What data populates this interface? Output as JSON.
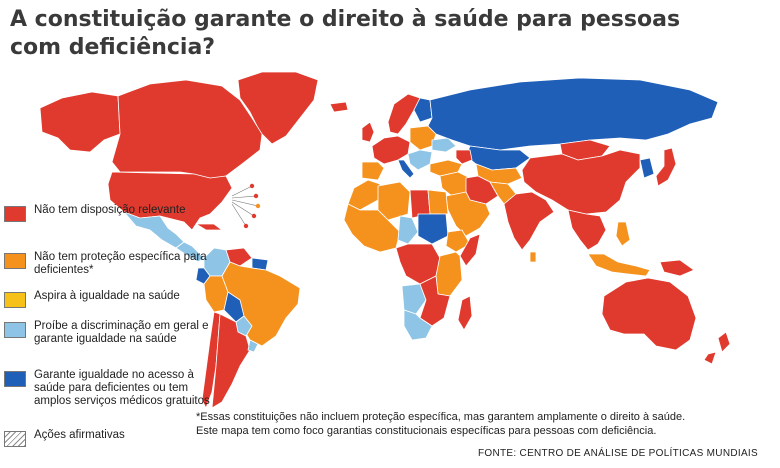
{
  "title": {
    "line1": "A constituição garante o direito à saúde para pessoas",
    "line2": "com deficiência?"
  },
  "colors": {
    "red": "#e03a2e",
    "orange": "#f5921e",
    "yellow": "#f6c21a",
    "light_blue": "#8ec4e6",
    "blue": "#1f5fb8",
    "ocean": "#ffffff",
    "border": "#ffffff"
  },
  "legend": [
    {
      "name": "legend-no-provision",
      "color": "#e03a2e",
      "hatch": false,
      "label": "Não tem disposição relevante"
    },
    {
      "name": "legend-no-specific-protection",
      "color": "#f5921e",
      "hatch": false,
      "label": "Não tem proteção específica para deficientes*"
    },
    {
      "name": "legend-aspires-equality",
      "color": "#f6c21a",
      "hatch": false,
      "label": "Aspira à igualdade na saúde"
    },
    {
      "name": "legend-prohibits-discrimination",
      "color": "#8ec4e6",
      "hatch": false,
      "label": "Proíbe a discriminação em geral e garante igualdade na saúde"
    },
    {
      "name": "legend-guarantees-equality",
      "color": "#1f5fb8",
      "hatch": false,
      "label": "Garante igualdade no acesso à saúde para deficientes ou tem amplos serviços médicos gratuitos"
    },
    {
      "name": "legend-affirmative-actions",
      "color": "#ffffff",
      "hatch": true,
      "label": "Ações afirmativas"
    }
  ],
  "footnote": {
    "line1": "*Essas constituições não incluem proteção específica, mas garantem amplamente o direito à saúde.",
    "line2": "Este mapa tem como foco garantias constitucionais específicas para pessoas com deficiência."
  },
  "source": "FONTE: CENTRO DE ANÁLISE DE POLÍTICAS MUNDIAIS",
  "map": {
    "regions": [
      {
        "name": "canada-region",
        "category": "red"
      },
      {
        "name": "greenland-region",
        "category": "red"
      },
      {
        "name": "usa-region",
        "category": "red"
      },
      {
        "name": "alaska-region",
        "category": "red"
      },
      {
        "name": "mexico-region",
        "category": "light_blue"
      },
      {
        "name": "central-america-region",
        "category": "light_blue"
      },
      {
        "name": "cuba-region",
        "category": "red"
      },
      {
        "name": "colombia-region",
        "category": "light_blue"
      },
      {
        "name": "venezuela-region",
        "category": "red"
      },
      {
        "name": "guianas-region",
        "category": "blue"
      },
      {
        "name": "brazil-region",
        "category": "orange"
      },
      {
        "name": "peru-region",
        "category": "orange"
      },
      {
        "name": "ecuador-region",
        "category": "blue"
      },
      {
        "name": "bolivia-region",
        "category": "blue"
      },
      {
        "name": "paraguay-region",
        "category": "light_blue"
      },
      {
        "name": "chile-region",
        "category": "red"
      },
      {
        "name": "argentina-region",
        "category": "red"
      },
      {
        "name": "uruguay-region",
        "category": "light_blue"
      },
      {
        "name": "iceland-region",
        "category": "red"
      },
      {
        "name": "uk-region",
        "category": "red"
      },
      {
        "name": "scandinavia-region",
        "category": "red"
      },
      {
        "name": "finland-region",
        "category": "blue"
      },
      {
        "name": "western-europe-region",
        "category": "red"
      },
      {
        "name": "iberia-region",
        "category": "orange"
      },
      {
        "name": "italy-region",
        "category": "blue"
      },
      {
        "name": "eastern-europe-region",
        "category": "orange"
      },
      {
        "name": "balkans-region",
        "category": "light_blue"
      },
      {
        "name": "ukraine-region",
        "category": "light_blue"
      },
      {
        "name": "russia-region",
        "category": "blue"
      },
      {
        "name": "kazakhstan-region",
        "category": "blue"
      },
      {
        "name": "turkey-region",
        "category": "orange"
      },
      {
        "name": "caucasus-region",
        "category": "red"
      },
      {
        "name": "north-africa-west-region",
        "category": "orange"
      },
      {
        "name": "algeria-region",
        "category": "orange"
      },
      {
        "name": "libya-region",
        "category": "red"
      },
      {
        "name": "egypt-region",
        "category": "orange"
      },
      {
        "name": "west-africa-region",
        "category": "orange"
      },
      {
        "name": "sahel-region",
        "category": "light_blue"
      },
      {
        "name": "sudan-region",
        "category": "blue"
      },
      {
        "name": "ethiopia-region",
        "category": "orange"
      },
      {
        "name": "somalia-region",
        "category": "red"
      },
      {
        "name": "central-africa-region",
        "category": "red"
      },
      {
        "name": "east-africa-region",
        "category": "orange"
      },
      {
        "name": "angola-region",
        "category": "light_blue"
      },
      {
        "name": "southern-africa-region",
        "category": "red"
      },
      {
        "name": "south-africa-region",
        "category": "light_blue"
      },
      {
        "name": "madagascar-region",
        "category": "red"
      },
      {
        "name": "arabia-region",
        "category": "orange"
      },
      {
        "name": "middle-east-region",
        "category": "orange"
      },
      {
        "name": "iran-region",
        "category": "red"
      },
      {
        "name": "central-asia-region",
        "category": "orange"
      },
      {
        "name": "afghanistan-region",
        "category": "orange"
      },
      {
        "name": "india-region",
        "category": "red"
      },
      {
        "name": "sri-lanka-region",
        "category": "orange"
      },
      {
        "name": "mongolia-region",
        "category": "red"
      },
      {
        "name": "china-region",
        "category": "red"
      },
      {
        "name": "southeast-asia-region",
        "category": "red"
      },
      {
        "name": "korea-region",
        "category": "blue"
      },
      {
        "name": "japan-region",
        "category": "red"
      },
      {
        "name": "philippines-region",
        "category": "orange"
      },
      {
        "name": "indonesia-region",
        "category": "orange"
      },
      {
        "name": "papua-region",
        "category": "red"
      },
      {
        "name": "australia-region",
        "category": "red"
      },
      {
        "name": "new-zealand-region",
        "category": "red"
      }
    ]
  }
}
